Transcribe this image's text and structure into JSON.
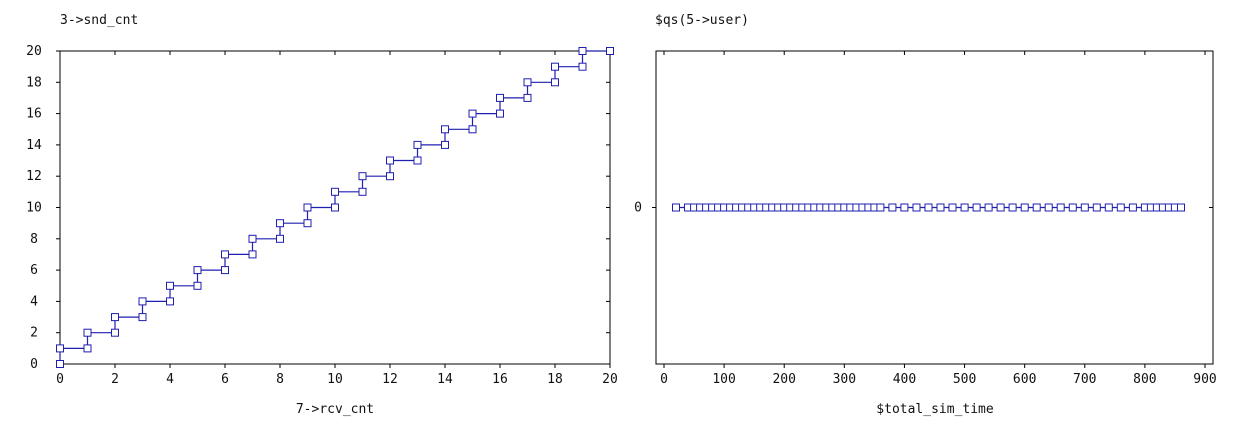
{
  "chart_data": [
    {
      "type": "line",
      "title": "3->snd_cnt",
      "xlabel": "7->rcv_cnt",
      "ylabel": "",
      "xlim": [
        0,
        20
      ],
      "ylim": [
        0,
        20
      ],
      "x_ticks": [
        0,
        2,
        4,
        6,
        8,
        10,
        12,
        14,
        16,
        18,
        20
      ],
      "y_ticks": [
        0,
        2,
        4,
        6,
        8,
        10,
        12,
        14,
        16,
        18,
        20
      ],
      "grid": false,
      "series": [
        {
          "color": "#1f1fb0",
          "marker": "square",
          "x": [
            0,
            0,
            1,
            1,
            2,
            2,
            3,
            3,
            4,
            4,
            5,
            5,
            6,
            6,
            7,
            7,
            8,
            8,
            9,
            9,
            10,
            10,
            11,
            11,
            12,
            12,
            13,
            13,
            14,
            14,
            15,
            15,
            16,
            16,
            17,
            17,
            18,
            18,
            19,
            19,
            20
          ],
          "y": [
            0,
            1,
            1,
            2,
            2,
            3,
            3,
            4,
            4,
            5,
            5,
            6,
            6,
            7,
            7,
            8,
            8,
            9,
            9,
            10,
            10,
            11,
            11,
            12,
            12,
            13,
            13,
            14,
            14,
            15,
            15,
            16,
            16,
            17,
            17,
            18,
            18,
            19,
            19,
            20,
            20
          ]
        }
      ]
    },
    {
      "type": "line",
      "title": "$qs(5->user)",
      "xlabel": "$total_sim_time",
      "ylabel": "",
      "xlim": [
        0,
        900
      ],
      "ylim": [
        -1,
        1
      ],
      "x_ticks": [
        0,
        100,
        200,
        300,
        400,
        500,
        600,
        700,
        800,
        900
      ],
      "y_ticks": [
        0
      ],
      "grid": false,
      "series": [
        {
          "color": "#1f1fb0",
          "marker": "square",
          "x": [
            20,
            40,
            50,
            60,
            70,
            80,
            90,
            100,
            110,
            120,
            130,
            140,
            150,
            160,
            170,
            180,
            190,
            200,
            210,
            220,
            230,
            240,
            250,
            260,
            270,
            280,
            290,
            300,
            310,
            320,
            330,
            340,
            350,
            360,
            380,
            400,
            420,
            440,
            460,
            480,
            500,
            520,
            540,
            560,
            580,
            600,
            620,
            640,
            660,
            680,
            700,
            720,
            740,
            760,
            780,
            800,
            810,
            820,
            830,
            840,
            850,
            860
          ],
          "y": [
            0,
            0,
            0,
            0,
            0,
            0,
            0,
            0,
            0,
            0,
            0,
            0,
            0,
            0,
            0,
            0,
            0,
            0,
            0,
            0,
            0,
            0,
            0,
            0,
            0,
            0,
            0,
            0,
            0,
            0,
            0,
            0,
            0,
            0,
            0,
            0,
            0,
            0,
            0,
            0,
            0,
            0,
            0,
            0,
            0,
            0,
            0,
            0,
            0,
            0,
            0,
            0,
            0,
            0,
            0,
            0,
            0,
            0,
            0,
            0,
            0,
            0
          ]
        }
      ]
    }
  ]
}
